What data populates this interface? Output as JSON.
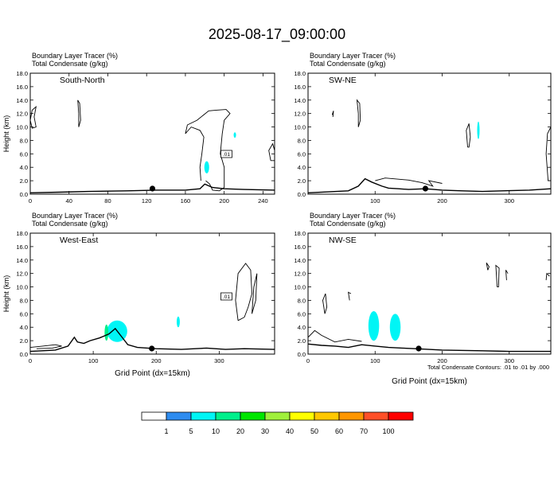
{
  "figure": {
    "title": "2025-08-17_09:00:00",
    "contour_note": "Total Condensate Contours: .01 to .01 by .000"
  },
  "colorbar": {
    "labels": [
      "1",
      "5",
      "10",
      "20",
      "30",
      "40",
      "50",
      "60",
      "70",
      "100"
    ],
    "colors": [
      "#ffffff",
      "#2e8cf0",
      "#00f5f5",
      "#00f08c",
      "#00e600",
      "#a0f03c",
      "#ffff00",
      "#ffc800",
      "#ff9600",
      "#ff5028",
      "#ff0000"
    ]
  },
  "chart_data": [
    {
      "type": "heatmap",
      "panel_label": "South-North",
      "subtitles": [
        "Boundary Layer Tracer   (%)",
        "Total Condensate   (g/kg)"
      ],
      "xlabel": "",
      "ylabel": "Height (km)",
      "xlim": [
        0,
        252
      ],
      "ylim": [
        0,
        18
      ],
      "xticks": [
        "0",
        "40",
        "80",
        "120",
        "160",
        "200",
        "240"
      ],
      "xtick_values": [
        0,
        40,
        80,
        120,
        160,
        200,
        240
      ],
      "yticks": [
        "0.0",
        "2.0",
        "4.0",
        "6.0",
        "8.0",
        "10.0",
        "12.0",
        "14.0",
        "16.0",
        "18.0"
      ],
      "marker_x": 126,
      "contour_label": ".01",
      "terrain": [
        [
          0,
          0.2
        ],
        [
          30,
          0.3
        ],
        [
          60,
          0.4
        ],
        [
          100,
          0.5
        ],
        [
          130,
          0.6
        ],
        [
          160,
          0.6
        ],
        [
          175,
          0.8
        ],
        [
          180,
          1.5
        ],
        [
          188,
          1.0
        ],
        [
          200,
          0.8
        ],
        [
          220,
          0.7
        ],
        [
          252,
          0.6
        ]
      ],
      "shaded": [
        {
          "cx": 182,
          "cy": 4.0,
          "rx": 2.5,
          "ry": 0.9,
          "value": 5
        },
        {
          "cx": 211,
          "cy": 8.8,
          "rx": 1,
          "ry": 0.4,
          "value": 5
        }
      ],
      "contours": [
        [
          [
            176,
            2
          ],
          [
            175,
            4
          ],
          [
            177,
            6
          ],
          [
            179,
            8.5
          ],
          [
            175,
            9.5
          ],
          [
            166,
            10
          ],
          [
            160,
            9
          ],
          [
            162,
            10.3
          ],
          [
            172,
            11
          ],
          [
            184,
            12.4
          ],
          [
            192,
            12.5
          ],
          [
            202,
            12.6
          ],
          [
            206,
            12
          ],
          [
            200,
            11
          ],
          [
            198,
            9
          ],
          [
            196,
            6
          ],
          [
            200,
            4
          ],
          [
            200,
            1
          ],
          [
            195,
            0.5
          ],
          [
            188,
            0.6
          ],
          [
            185,
            1.5
          ],
          [
            181,
            2
          ]
        ],
        [
          [
            50,
            12
          ],
          [
            49,
            14
          ],
          [
            51,
            13.5
          ],
          [
            52,
            11
          ],
          [
            50,
            10
          ],
          [
            50,
            12
          ]
        ],
        [
          [
            0,
            11
          ],
          [
            2,
            12.5
          ],
          [
            6,
            13
          ],
          [
            4,
            11.5
          ],
          [
            6,
            10
          ],
          [
            2,
            9.8
          ],
          [
            0,
            11
          ]
        ],
        [
          [
            248,
            5
          ],
          [
            246,
            6.5
          ],
          [
            250,
            7.5
          ],
          [
            252,
            6.5
          ],
          [
            252,
            5
          ],
          [
            248,
            5
          ]
        ]
      ]
    },
    {
      "type": "heatmap",
      "panel_label": "SW-NE",
      "subtitles": [
        "Boundary Layer Tracer   (%)",
        "Total Condensate   (g/kg)"
      ],
      "xlabel": "",
      "ylabel": "",
      "xlim": [
        0,
        362
      ],
      "ylim": [
        0,
        18
      ],
      "xticks": [
        "100",
        "200",
        "300"
      ],
      "xtick_values": [
        100,
        200,
        300
      ],
      "yticks": [
        "0.0",
        "2.0",
        "4.0",
        "6.0",
        "8.0",
        "10.0",
        "12.0",
        "14.0",
        "16.0",
        "18.0"
      ],
      "marker_x": 175,
      "contour_label": "",
      "terrain": [
        [
          0,
          0.2
        ],
        [
          60,
          0.5
        ],
        [
          75,
          1.2
        ],
        [
          85,
          2.3
        ],
        [
          95,
          1.8
        ],
        [
          110,
          1.2
        ],
        [
          120,
          0.9
        ],
        [
          135,
          0.8
        ],
        [
          150,
          0.7
        ],
        [
          175,
          0.8
        ],
        [
          200,
          0.6
        ],
        [
          230,
          0.5
        ],
        [
          260,
          0.4
        ],
        [
          290,
          0.5
        ],
        [
          330,
          0.6
        ],
        [
          362,
          0.8
        ]
      ],
      "shaded": [
        {
          "cx": 254,
          "cy": 9.5,
          "rx": 1.5,
          "ry": 1.3,
          "value": 5
        }
      ],
      "contours": [
        [
          [
            75,
            12
          ],
          [
            73,
            14
          ],
          [
            77,
            13.5
          ],
          [
            78,
            11
          ],
          [
            75,
            10
          ],
          [
            75,
            12
          ]
        ],
        [
          [
            36,
            11.8
          ],
          [
            38,
            12.4
          ],
          [
            37,
            11.5
          ]
        ],
        [
          [
            238,
            7
          ],
          [
            236,
            9.5
          ],
          [
            240,
            10.5
          ],
          [
            242,
            8.5
          ],
          [
            240,
            7
          ],
          [
            238,
            7
          ]
        ],
        [
          [
            358,
            2
          ],
          [
            355,
            6
          ],
          [
            357,
            9
          ],
          [
            362,
            10
          ],
          [
            362,
            2
          ],
          [
            358,
            2
          ]
        ],
        [
          [
            100,
            2
          ],
          [
            115,
            2.4
          ],
          [
            150,
            2.1
          ],
          [
            170,
            1.7
          ],
          [
            186,
            1.2
          ],
          [
            180,
            2.0
          ],
          [
            200,
            1.6
          ]
        ]
      ]
    },
    {
      "type": "heatmap",
      "panel_label": "West-East",
      "subtitles": [
        "Boundary Layer Tracer   (%)",
        "Total Condensate   (g/kg)"
      ],
      "xlabel": "Grid Point (dx=15km)",
      "ylabel": "Height (km)",
      "xlim": [
        0,
        388
      ],
      "ylim": [
        0,
        18
      ],
      "xticks": [
        "0",
        "100",
        "200",
        "300"
      ],
      "xtick_values": [
        0,
        100,
        200,
        300
      ],
      "yticks": [
        "0.0",
        "2.0",
        "4.0",
        "6.0",
        "8.0",
        "10.0",
        "12.0",
        "14.0",
        "16.0",
        "18.0"
      ],
      "marker_x": 193,
      "contour_label": ".01",
      "terrain": [
        [
          0,
          0.4
        ],
        [
          40,
          0.6
        ],
        [
          60,
          1.2
        ],
        [
          70,
          2.5
        ],
        [
          75,
          1.8
        ],
        [
          85,
          1.6
        ],
        [
          95,
          2.0
        ],
        [
          110,
          2.4
        ],
        [
          125,
          3.0
        ],
        [
          135,
          3.8
        ],
        [
          145,
          2.6
        ],
        [
          155,
          1.4
        ],
        [
          170,
          1.0
        ],
        [
          200,
          0.8
        ],
        [
          240,
          0.7
        ],
        [
          280,
          0.9
        ],
        [
          310,
          0.7
        ],
        [
          340,
          0.8
        ],
        [
          388,
          0.7
        ]
      ],
      "shaded": [
        {
          "cx": 138,
          "cy": 3.4,
          "rx": 16,
          "ry": 1.6,
          "value": 5
        },
        {
          "cx": 121,
          "cy": 3.2,
          "rx": 3,
          "ry": 1.2,
          "value": 10
        },
        {
          "cx": 235,
          "cy": 4.8,
          "rx": 2.5,
          "ry": 0.8,
          "value": 5
        }
      ],
      "contours": [
        [
          [
            330,
            5
          ],
          [
            326,
            8
          ],
          [
            330,
            12
          ],
          [
            342,
            13.5
          ],
          [
            350,
            12.5
          ],
          [
            352,
            9
          ],
          [
            346,
            7
          ],
          [
            340,
            5.5
          ],
          [
            330,
            5
          ]
        ],
        [
          [
            0,
            1.0
          ],
          [
            20,
            1.2
          ],
          [
            40,
            1.4
          ],
          [
            50,
            1.2
          ],
          [
            35,
            0.9
          ],
          [
            10,
            0.8
          ]
        ],
        [
          [
            352,
            6
          ],
          [
            355,
            10
          ],
          [
            360,
            12
          ],
          [
            358,
            8
          ],
          [
            352,
            6
          ]
        ]
      ]
    },
    {
      "type": "heatmap",
      "panel_label": "NW-SE",
      "subtitles": [
        "Boundary Layer Tracer   (%)",
        "Total Condensate   (g/kg)"
      ],
      "xlabel": "Grid Point (dx=15km)",
      "ylabel": "",
      "xlim": [
        0,
        362
      ],
      "ylim": [
        0,
        18
      ],
      "xticks": [
        "0",
        "100",
        "200",
        "300"
      ],
      "xtick_values": [
        0,
        100,
        200,
        300
      ],
      "yticks": [
        "0.0",
        "2.0",
        "4.0",
        "6.0",
        "8.0",
        "10.0",
        "12.0",
        "14.0",
        "16.0",
        "18.0"
      ],
      "marker_x": 165,
      "contour_label": "",
      "terrain": [
        [
          0,
          1.5
        ],
        [
          20,
          1.3
        ],
        [
          40,
          1.2
        ],
        [
          60,
          1.0
        ],
        [
          80,
          1.4
        ],
        [
          100,
          1.2
        ],
        [
          120,
          1.0
        ],
        [
          140,
          0.9
        ],
        [
          160,
          0.8
        ],
        [
          180,
          0.7
        ],
        [
          200,
          0.6
        ],
        [
          260,
          0.5
        ],
        [
          300,
          0.4
        ],
        [
          362,
          0.4
        ]
      ],
      "shaded": [
        {
          "cx": 98,
          "cy": 4.2,
          "rx": 8,
          "ry": 2.2,
          "value": 5
        },
        {
          "cx": 130,
          "cy": 4.0,
          "rx": 8,
          "ry": 2.0,
          "value": 5
        }
      ],
      "contours": [
        [
          [
            25,
            6
          ],
          [
            22,
            8
          ],
          [
            26,
            9
          ],
          [
            28,
            7
          ],
          [
            25,
            6
          ]
        ],
        [
          [
            268,
            12.5
          ],
          [
            266,
            13.6
          ],
          [
            270,
            13
          ],
          [
            268,
            12.5
          ]
        ],
        [
          [
            282,
            10
          ],
          [
            280,
            13.2
          ],
          [
            285,
            12.8
          ],
          [
            284,
            10
          ],
          [
            282,
            10
          ]
        ],
        [
          [
            296,
            11
          ],
          [
            295,
            12.5
          ],
          [
            298,
            12
          ]
        ],
        [
          [
            355,
            11
          ],
          [
            356,
            12
          ],
          [
            360,
            11.6
          ]
        ],
        [
          [
            62,
            8
          ],
          [
            60,
            9.2
          ],
          [
            64,
            9
          ]
        ],
        [
          [
            0,
            2.5
          ],
          [
            10,
            3.5
          ],
          [
            20,
            2.8
          ],
          [
            40,
            1.8
          ],
          [
            60,
            2.2
          ],
          [
            80,
            1.9
          ]
        ]
      ]
    }
  ]
}
